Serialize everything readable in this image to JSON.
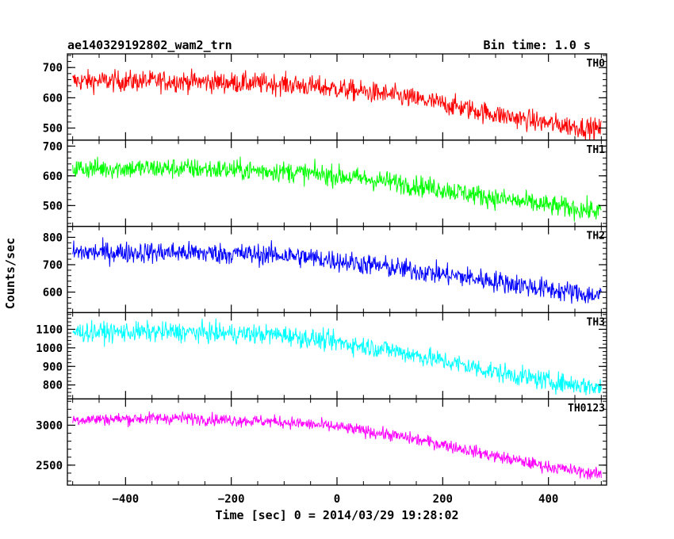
{
  "header": {
    "title": "ae140329192802_wam2_trn",
    "bin_time": "Bin time: 1.0 s"
  },
  "axes": {
    "xlabel": "Time [sec] 0 = 2014/03/29 19:28:02",
    "ylabel": "Counts/sec"
  },
  "chart_data": {
    "type": "line",
    "xlim": [
      -510,
      510
    ],
    "x_ticks": [
      -400,
      -200,
      0,
      200,
      400
    ],
    "x_tick_labels": [
      "−400",
      "−200",
      "0",
      "200",
      "400"
    ],
    "x_range": [
      -500,
      500
    ],
    "panels": [
      {
        "name": "TH0",
        "color": "#ff0000",
        "ylim": [
          460,
          745
        ],
        "y_ticks": [
          500,
          600,
          700
        ],
        "y_tick_labels": [
          "500",
          "600",
          "700"
        ],
        "trend_x": [
          -500,
          -300,
          -100,
          0,
          100,
          200,
          300,
          400,
          500
        ],
        "trend_y": [
          655,
          655,
          645,
          630,
          610,
          580,
          545,
          515,
          495
        ],
        "noise": 25
      },
      {
        "name": "TH1",
        "color": "#00ff00",
        "ylim": [
          430,
          720
        ],
        "y_ticks": [
          500,
          600,
          700
        ],
        "y_tick_labels": [
          "500",
          "600",
          "700"
        ],
        "trend_x": [
          -500,
          -300,
          -100,
          0,
          100,
          200,
          300,
          400,
          500
        ],
        "trend_y": [
          625,
          625,
          615,
          600,
          580,
          555,
          525,
          500,
          480
        ],
        "noise": 25
      },
      {
        "name": "TH2",
        "color": "#0000ff",
        "ylim": [
          525,
          840
        ],
        "y_ticks": [
          600,
          700,
          800
        ],
        "y_tick_labels": [
          "600",
          "700",
          "800"
        ],
        "trend_x": [
          -500,
          -300,
          -100,
          0,
          100,
          200,
          300,
          400,
          500
        ],
        "trend_y": [
          745,
          745,
          735,
          715,
          690,
          665,
          640,
          610,
          585
        ],
        "noise": 28
      },
      {
        "name": "TH3",
        "color": "#00ffff",
        "ylim": [
          725,
          1190
        ],
        "y_ticks": [
          800,
          900,
          1000,
          1100
        ],
        "y_tick_labels": [
          "800",
          "900",
          "1000",
          "1100"
        ],
        "trend_x": [
          -500,
          -300,
          -100,
          0,
          100,
          200,
          300,
          400,
          500
        ],
        "trend_y": [
          1085,
          1085,
          1070,
          1030,
          990,
          930,
          870,
          820,
          785
        ],
        "noise": 38
      },
      {
        "name": "TH0123",
        "color": "#ff00ff",
        "ylim": [
          2250,
          3330
        ],
        "y_ticks": [
          2500,
          3000
        ],
        "y_tick_labels": [
          "2500",
          "3000"
        ],
        "trend_x": [
          -500,
          -300,
          -100,
          0,
          100,
          200,
          300,
          400,
          500
        ],
        "trend_y": [
          3070,
          3090,
          3040,
          2980,
          2880,
          2760,
          2610,
          2480,
          2380
        ],
        "noise": 55
      }
    ]
  }
}
